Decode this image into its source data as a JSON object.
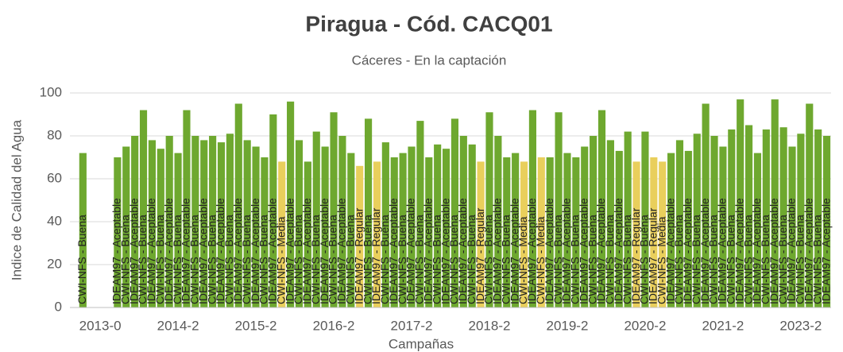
{
  "chart_data": {
    "type": "bar",
    "title": "Piragua - Cód. CACQ01",
    "subtitle": "Cáceres - En la captación",
    "y_label": "Indice de Calidad del Agua",
    "x_label": "Campañas",
    "ylim": [
      0,
      100
    ],
    "yticks": [
      0,
      20,
      40,
      60,
      80,
      100
    ],
    "grid": true,
    "categories": [
      null,
      null,
      null,
      "2013-0",
      null,
      null,
      null,
      null,
      null,
      null,
      null,
      null,
      "2014-2",
      null,
      null,
      null,
      null,
      null,
      null,
      null,
      null,
      "2015-2",
      null,
      null,
      null,
      null,
      null,
      null,
      null,
      null,
      "2016-2",
      null,
      null,
      null,
      null,
      null,
      null,
      null,
      null,
      "2017-2",
      null,
      null,
      null,
      null,
      null,
      null,
      null,
      null,
      "2018-2",
      null,
      null,
      null,
      null,
      null,
      null,
      null,
      null,
      "2019-2",
      null,
      null,
      null,
      null,
      null,
      null,
      null,
      null,
      "2020-2",
      null,
      null,
      null,
      null,
      null,
      null,
      null,
      null,
      "2021-2",
      null,
      null,
      null,
      null,
      null,
      null,
      null,
      null,
      "2023-2",
      null,
      null,
      null
    ],
    "values": [
      null,
      72,
      null,
      null,
      null,
      70,
      75,
      80,
      92,
      78,
      74,
      80,
      72,
      92,
      80,
      78,
      80,
      77,
      81,
      95,
      78,
      75,
      70,
      90,
      68,
      96,
      78,
      68,
      82,
      75,
      91,
      80,
      72,
      66,
      88,
      68,
      77,
      70,
      72,
      75,
      87,
      70,
      76,
      74,
      88,
      80,
      76,
      68,
      91,
      80,
      70,
      72,
      68,
      92,
      70,
      70,
      91,
      72,
      70,
      75,
      80,
      92,
      78,
      73,
      82,
      68,
      82,
      70,
      68,
      72,
      78,
      73,
      81,
      95,
      80,
      75,
      83,
      97,
      85,
      72,
      83,
      97,
      84,
      75,
      81,
      95,
      83,
      80
    ],
    "colors": [
      null,
      "#6ea82f",
      null,
      null,
      null,
      "#6ea82f",
      "#6ea82f",
      "#6ea82f",
      "#6ea82f",
      "#6ea82f",
      "#6ea82f",
      "#6ea82f",
      "#6ea82f",
      "#6ea82f",
      "#6ea82f",
      "#6ea82f",
      "#6ea82f",
      "#6ea82f",
      "#6ea82f",
      "#6ea82f",
      "#6ea82f",
      "#6ea82f",
      "#6ea82f",
      "#6ea82f",
      "#e9cf5c",
      "#6ea82f",
      "#6ea82f",
      "#6ea82f",
      "#6ea82f",
      "#6ea82f",
      "#6ea82f",
      "#6ea82f",
      "#6ea82f",
      "#e9cf5c",
      "#6ea82f",
      "#e9cf5c",
      "#6ea82f",
      "#6ea82f",
      "#6ea82f",
      "#6ea82f",
      "#6ea82f",
      "#6ea82f",
      "#6ea82f",
      "#6ea82f",
      "#6ea82f",
      "#6ea82f",
      "#6ea82f",
      "#e9cf5c",
      "#6ea82f",
      "#6ea82f",
      "#6ea82f",
      "#6ea82f",
      "#e9cf5c",
      "#6ea82f",
      "#e9cf5c",
      "#6ea82f",
      "#6ea82f",
      "#6ea82f",
      "#6ea82f",
      "#6ea82f",
      "#6ea82f",
      "#6ea82f",
      "#6ea82f",
      "#6ea82f",
      "#6ea82f",
      "#e9cf5c",
      "#6ea82f",
      "#e9cf5c",
      "#e9cf5c",
      "#6ea82f",
      "#6ea82f",
      "#6ea82f",
      "#6ea82f",
      "#6ea82f",
      "#6ea82f",
      "#6ea82f",
      "#6ea82f",
      "#6ea82f",
      "#6ea82f",
      "#6ea82f",
      "#6ea82f",
      "#6ea82f",
      "#6ea82f",
      "#6ea82f",
      "#6ea82f",
      "#6ea82f",
      "#6ea82f",
      "#6ea82f"
    ],
    "labels": [
      null,
      "CWI-NFS - Buena",
      null,
      null,
      null,
      "IDEAM97 - Aceptable",
      "CWI-NFS - Buena",
      "IDEAM97 - Aceptable",
      "CWI-NFS - Buena",
      "IDEAM97 - Aceptable",
      "CWI-NFS - Buena",
      "IDEAM97 - Aceptable",
      "CWI-NFS - Buena",
      "IDEAM97 - Aceptable",
      "CWI-NFS - Buena",
      "IDEAM97 - Aceptable",
      "CWI-NFS - Buena",
      "IDEAM97 - Aceptable",
      "CWI-NFS - Buena",
      "IDEAM97 - Aceptable",
      "CWI-NFS - Buena",
      "IDEAM97 - Aceptable",
      "CWI-NFS - Buena",
      "IDEAM97 - Aceptable",
      "CWI-NFS - Media",
      "IDEAM97 - Aceptable",
      "CWI-NFS - Buena",
      "IDEAM97 - Aceptable",
      "CWI-NFS - Buena",
      "IDEAM97 - Aceptable",
      "CWI-NFS - Buena",
      "IDEAM97 - Aceptable",
      "CWI-NFS - Buena",
      "IDEAM97 - Regular",
      "CWI-NFS - Buena",
      "IDEAM97 - Regular",
      "CWI-NFS - Buena",
      "IDEAM97 - Aceptable",
      "CWI-NFS - Buena",
      "IDEAM97 - Aceptable",
      "CWI-NFS - Buena",
      "IDEAM97 - Aceptable",
      "CWI-NFS - Buena",
      "IDEAM97 - Aceptable",
      "CWI-NFS - Buena",
      "IDEAM97 - Aceptable",
      "CWI-NFS - Buena",
      "IDEAM97 - Regular",
      "CWI-NFS - Buena",
      "IDEAM97 - Aceptable",
      "CWI-NFS - Buena",
      "IDEAM97 - Aceptable",
      "CWI-NFS - Media",
      "IDEAM97 - Aceptable",
      "CWI-NFS - Media",
      "IDEAM97 - Aceptable",
      "CWI-NFS - Buena",
      "IDEAM97 - Aceptable",
      "CWI-NFS - Buena",
      "IDEAM97 - Aceptable",
      "CWI-NFS - Buena",
      "IDEAM97 - Aceptable",
      "CWI-NFS - Buena",
      "IDEAM97 - Aceptable",
      "CWI-NFS - Buena",
      "IDEAM97 - Regular",
      "CWI-NFS - Buena",
      "IDEAM97 - Regular",
      "CWI-NFS - Media",
      "IDEAM97 - Aceptable",
      "CWI-NFS - Buena",
      "IDEAM97 - Aceptable",
      "CWI-NFS - Buena",
      "IDEAM97 - Aceptable",
      "CWI-NFS - Buena",
      "IDEAM97 - Aceptable",
      "CWI-NFS - Buena",
      "IDEAM97 - Aceptable",
      "CWI-NFS - Buena",
      "IDEAM97 - Aceptable",
      "CWI-NFS - Buena",
      "IDEAM97 - Aceptable",
      "CWI-NFS - Buena",
      "IDEAM97 - Aceptable",
      "CWI-NFS - Buena",
      "IDEAM97 - Aceptable",
      "CWI-NFS - Buena",
      "IDEAM97 - Aceptable"
    ]
  }
}
